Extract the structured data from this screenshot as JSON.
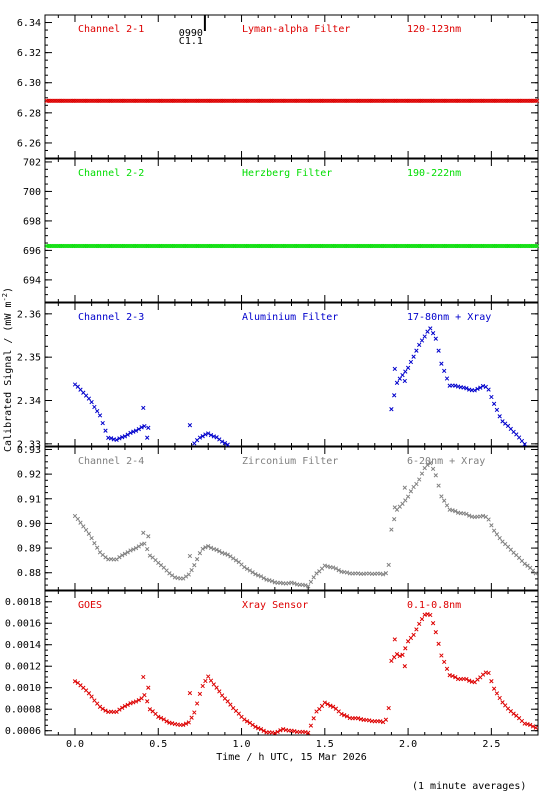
{
  "chart_data": {
    "type": "scatter",
    "marker": "x",
    "shared_x": {
      "label": "Time / h UTC, 15 Mar 2026",
      "range": [
        -0.18,
        2.78
      ],
      "ticks": [
        0.0,
        0.5,
        1.0,
        1.5,
        2.0,
        2.5
      ],
      "tick_labels": [
        "0.0",
        "0.5",
        "1.0",
        "1.5",
        "2.0",
        "2.5"
      ],
      "minor_step": 0.1
    },
    "ylabel": "Calibrated Signal / (mW m",
    "ylabel_sup": "-2",
    "ylabel_close": ")",
    "footnote": "(1 minute averages)",
    "event_marker": {
      "x": 0.78,
      "labels": [
        "0990",
        "C1.1"
      ]
    },
    "panels": [
      {
        "channel": "Channel 2-1",
        "filter": "Lyman-alpha Filter",
        "band": "120-123nm",
        "color": "#dd0000",
        "ylim": [
          6.25,
          6.345
        ],
        "yticks": [
          6.26,
          6.28,
          6.3,
          6.32,
          6.34
        ],
        "ytick_labels": [
          "6.26",
          "6.28",
          "6.30",
          "6.32",
          "6.34"
        ],
        "minor_step": 0.005,
        "keypoints": [
          [
            -0.17,
            6.288
          ],
          [
            2.78,
            6.288
          ]
        ]
      },
      {
        "channel": "Channel 2-2",
        "filter": "Herzberg Filter",
        "band": "190-222nm",
        "color": "#00dd00",
        "ylim": [
          692.5,
          702.2
        ],
        "yticks": [
          694,
          696,
          698,
          700,
          702
        ],
        "ytick_labels": [
          "694",
          "696",
          "698",
          "700",
          "702"
        ],
        "minor_step": 0.5,
        "keypoints": [
          [
            -0.17,
            696.3
          ],
          [
            2.78,
            696.3
          ]
        ]
      },
      {
        "channel": "Channel 2-3",
        "filter": "Aluminium Filter",
        "band": "17-80nm + Xray",
        "color": "#0000cc",
        "ylim": [
          2.3295,
          2.3625
        ],
        "yticks": [
          2.33,
          2.34,
          2.35,
          2.36
        ],
        "ytick_labels": [
          "2.33",
          "2.34",
          "2.35",
          "2.36"
        ],
        "minor_step": 0.0025,
        "keypoints": [
          [
            0.0,
            2.3437
          ],
          [
            0.05,
            2.3418
          ],
          [
            0.1,
            2.3397
          ],
          [
            0.15,
            2.3365
          ],
          [
            0.2,
            2.3313
          ],
          [
            0.25,
            2.331
          ],
          [
            0.3,
            2.3318
          ],
          [
            0.35,
            2.3327
          ],
          [
            0.4,
            2.3338
          ],
          [
            0.42,
            2.3342
          ],
          [
            0.45,
            2.3282
          ],
          [
            0.5,
            2.3277
          ],
          [
            0.55,
            2.3267
          ],
          [
            0.6,
            2.3252
          ],
          [
            0.65,
            2.3258
          ],
          [
            0.68,
            2.3283
          ],
          [
            0.72,
            2.3303
          ],
          [
            0.75,
            2.3315
          ],
          [
            0.8,
            2.3323
          ],
          [
            0.85,
            2.3315
          ],
          [
            0.9,
            2.3302
          ],
          [
            0.95,
            2.3287
          ],
          [
            1.0,
            2.327
          ],
          [
            1.05,
            2.3255
          ],
          [
            1.1,
            2.324
          ],
          [
            1.15,
            2.323
          ],
          [
            1.2,
            2.3221
          ],
          [
            1.25,
            2.3217
          ],
          [
            1.3,
            2.3223
          ],
          [
            1.32,
            2.3217
          ],
          [
            1.35,
            2.3213
          ],
          [
            1.4,
            2.3217
          ],
          [
            1.45,
            2.325
          ],
          [
            1.5,
            2.3278
          ],
          [
            1.55,
            2.3276
          ],
          [
            1.6,
            2.3264
          ],
          [
            1.65,
            2.3258
          ],
          [
            1.7,
            2.3258
          ],
          [
            1.75,
            2.3258
          ],
          [
            1.8,
            2.3258
          ],
          [
            1.85,
            2.3256
          ],
          [
            1.88,
            2.3265
          ],
          [
            1.9,
            2.338
          ],
          [
            1.93,
            2.344
          ],
          [
            1.96,
            2.3455
          ],
          [
            2.0,
            2.3475
          ],
          [
            2.03,
            2.3498
          ],
          [
            2.06,
            2.3525
          ],
          [
            2.1,
            2.3548
          ],
          [
            2.13,
            2.3568
          ],
          [
            2.17,
            2.354
          ],
          [
            2.2,
            2.3485
          ],
          [
            2.25,
            2.3435
          ],
          [
            2.3,
            2.3432
          ],
          [
            2.35,
            2.3428
          ],
          [
            2.4,
            2.3423
          ],
          [
            2.45,
            2.3433
          ],
          [
            2.48,
            2.3428
          ],
          [
            2.52,
            2.339
          ],
          [
            2.56,
            2.3355
          ],
          [
            2.6,
            2.334
          ],
          [
            2.65,
            2.3322
          ],
          [
            2.7,
            2.33
          ],
          [
            2.78,
            2.3275
          ]
        ],
        "extra_points": [
          [
            0.41,
            2.3383
          ],
          [
            0.44,
            2.3337
          ],
          [
            0.69,
            2.3343
          ],
          [
            1.92,
            2.3473
          ],
          [
            1.98,
            2.3445
          ]
        ]
      },
      {
        "channel": "Channel 2-4",
        "filter": "Zirconium Filter",
        "band": "6-20nm + Xray",
        "color": "#808080",
        "ylim": [
          0.873,
          0.931
        ],
        "yticks": [
          0.88,
          0.89,
          0.9,
          0.91,
          0.92,
          0.93
        ],
        "ytick_labels": [
          "0.88",
          "0.89",
          "0.90",
          "0.91",
          "0.92",
          "0.93"
        ],
        "minor_step": 0.0025,
        "keypoints": [
          [
            0.0,
            0.903
          ],
          [
            0.05,
            0.8988
          ],
          [
            0.1,
            0.8942
          ],
          [
            0.15,
            0.8882
          ],
          [
            0.2,
            0.8853
          ],
          [
            0.25,
            0.8856
          ],
          [
            0.3,
            0.8878
          ],
          [
            0.35,
            0.8893
          ],
          [
            0.4,
            0.8915
          ],
          [
            0.42,
            0.892
          ],
          [
            0.45,
            0.887
          ],
          [
            0.5,
            0.884
          ],
          [
            0.55,
            0.881
          ],
          [
            0.6,
            0.878
          ],
          [
            0.65,
            0.8775
          ],
          [
            0.68,
            0.879
          ],
          [
            0.72,
            0.8835
          ],
          [
            0.76,
            0.8895
          ],
          [
            0.8,
            0.8906
          ],
          [
            0.85,
            0.8893
          ],
          [
            0.9,
            0.8878
          ],
          [
            0.95,
            0.8858
          ],
          [
            1.0,
            0.8834
          ],
          [
            1.05,
            0.8808
          ],
          [
            1.1,
            0.8788
          ],
          [
            1.15,
            0.8774
          ],
          [
            1.2,
            0.8762
          ],
          [
            1.25,
            0.8755
          ],
          [
            1.3,
            0.876
          ],
          [
            1.35,
            0.8752
          ],
          [
            1.4,
            0.8745
          ],
          [
            1.45,
            0.8798
          ],
          [
            1.5,
            0.8828
          ],
          [
            1.55,
            0.882
          ],
          [
            1.6,
            0.8806
          ],
          [
            1.65,
            0.8798
          ],
          [
            1.7,
            0.8795
          ],
          [
            1.75,
            0.8797
          ],
          [
            1.8,
            0.8797
          ],
          [
            1.85,
            0.8793
          ],
          [
            1.88,
            0.8802
          ],
          [
            1.9,
            0.8975
          ],
          [
            1.93,
            0.9055
          ],
          [
            1.96,
            0.9073
          ],
          [
            2.0,
            0.9108
          ],
          [
            2.03,
            0.9145
          ],
          [
            2.06,
            0.917
          ],
          [
            2.1,
            0.9225
          ],
          [
            2.13,
            0.9248
          ],
          [
            2.17,
            0.919
          ],
          [
            2.2,
            0.911
          ],
          [
            2.25,
            0.9057
          ],
          [
            2.3,
            0.9043
          ],
          [
            2.35,
            0.9038
          ],
          [
            2.4,
            0.9025
          ],
          [
            2.45,
            0.903
          ],
          [
            2.48,
            0.902
          ],
          [
            2.52,
            0.8968
          ],
          [
            2.56,
            0.8932
          ],
          [
            2.6,
            0.8903
          ],
          [
            2.65,
            0.8872
          ],
          [
            2.7,
            0.8838
          ],
          [
            2.78,
            0.879
          ]
        ],
        "extra_points": [
          [
            0.41,
            0.8962
          ],
          [
            0.44,
            0.8948
          ],
          [
            0.69,
            0.8868
          ],
          [
            1.92,
            0.9065
          ],
          [
            1.98,
            0.9145
          ]
        ]
      },
      {
        "channel": "GOES",
        "filter": "Xray Sensor",
        "band": "0.1-0.8nm",
        "color": "#dd0000",
        "ylim": [
          0.00056,
          0.0019
        ],
        "yticks": [
          0.0006,
          0.0008,
          0.001,
          0.0012,
          0.0014,
          0.0016,
          0.0018
        ],
        "ytick_labels": [
          "0.0006",
          "0.0008",
          "0.0010",
          "0.0012",
          "0.0014",
          "0.0016",
          "0.0018"
        ],
        "minor_step": 5e-05,
        "keypoints": [
          [
            0.0,
            0.00106
          ],
          [
            0.05,
            0.001
          ],
          [
            0.1,
            0.00092
          ],
          [
            0.15,
            0.00082
          ],
          [
            0.2,
            0.00077
          ],
          [
            0.25,
            0.00078
          ],
          [
            0.3,
            0.00083
          ],
          [
            0.35,
            0.00086
          ],
          [
            0.4,
            0.0009
          ],
          [
            0.42,
            0.00094
          ],
          [
            0.45,
            0.0008
          ],
          [
            0.5,
            0.00073
          ],
          [
            0.55,
            0.00069
          ],
          [
            0.6,
            0.00066
          ],
          [
            0.65,
            0.00065
          ],
          [
            0.68,
            0.00067
          ],
          [
            0.72,
            0.00078
          ],
          [
            0.76,
            0.001
          ],
          [
            0.8,
            0.0011
          ],
          [
            0.85,
            0.001
          ],
          [
            0.9,
            0.0009
          ],
          [
            0.95,
            0.00081
          ],
          [
            1.0,
            0.00073
          ],
          [
            1.05,
            0.00067
          ],
          [
            1.1,
            0.00062
          ],
          [
            1.15,
            0.00059
          ],
          [
            1.2,
            0.00058
          ],
          [
            1.25,
            0.00061
          ],
          [
            1.3,
            0.0006
          ],
          [
            1.35,
            0.00059
          ],
          [
            1.4,
            0.00058
          ],
          [
            1.45,
            0.00078
          ],
          [
            1.5,
            0.00086
          ],
          [
            1.55,
            0.00082
          ],
          [
            1.6,
            0.00076
          ],
          [
            1.65,
            0.00072
          ],
          [
            1.7,
            0.00071
          ],
          [
            1.75,
            0.0007
          ],
          [
            1.8,
            0.00069
          ],
          [
            1.85,
            0.00068
          ],
          [
            1.88,
            0.00072
          ],
          [
            1.9,
            0.00125
          ],
          [
            1.93,
            0.00132
          ],
          [
            1.96,
            0.00128
          ],
          [
            2.0,
            0.00143
          ],
          [
            2.03,
            0.00148
          ],
          [
            2.06,
            0.00158
          ],
          [
            2.1,
            0.00168
          ],
          [
            2.13,
            0.00169
          ],
          [
            2.17,
            0.0015
          ],
          [
            2.2,
            0.0013
          ],
          [
            2.25,
            0.00112
          ],
          [
            2.3,
            0.00108
          ],
          [
            2.35,
            0.00108
          ],
          [
            2.4,
            0.00105
          ],
          [
            2.45,
            0.00112
          ],
          [
            2.48,
            0.00115
          ],
          [
            2.52,
            0.00098
          ],
          [
            2.56,
            0.00088
          ],
          [
            2.6,
            0.0008
          ],
          [
            2.65,
            0.00074
          ],
          [
            2.7,
            0.00067
          ],
          [
            2.78,
            0.00062
          ]
        ],
        "extra_points": [
          [
            0.41,
            0.0011
          ],
          [
            0.44,
            0.001
          ],
          [
            0.69,
            0.00095
          ],
          [
            1.92,
            0.00145
          ],
          [
            1.98,
            0.0012
          ]
        ]
      }
    ]
  }
}
